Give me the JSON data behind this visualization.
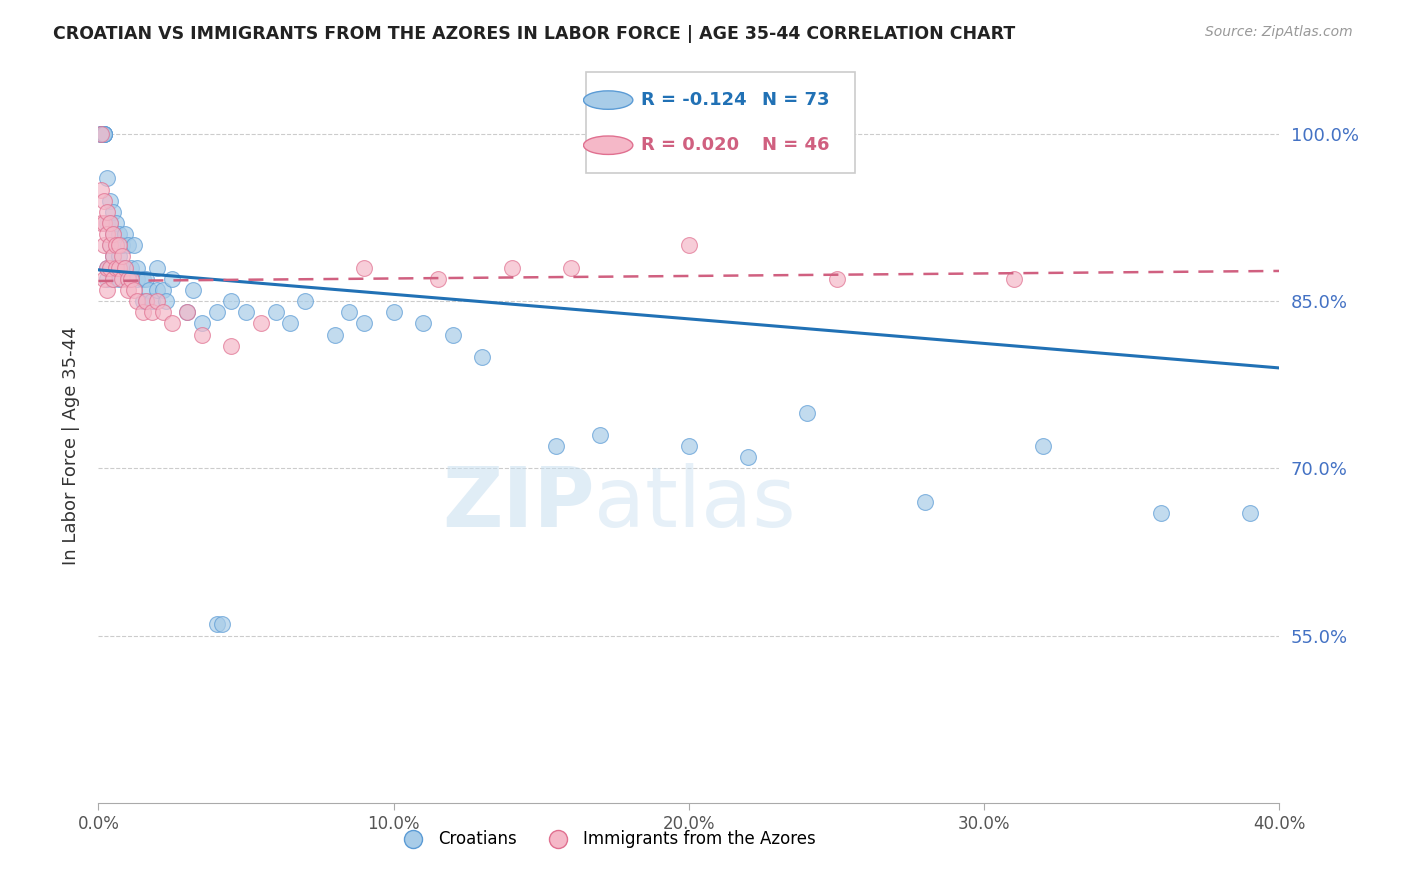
{
  "title": "CROATIAN VS IMMIGRANTS FROM THE AZORES IN LABOR FORCE | AGE 35-44 CORRELATION CHART",
  "source": "Source: ZipAtlas.com",
  "ylabel": "In Labor Force | Age 35-44",
  "xlim": [
    0.0,
    0.4
  ],
  "ylim": [
    0.4,
    1.04
  ],
  "yticks": [
    0.55,
    0.7,
    0.85,
    1.0
  ],
  "ytick_labels": [
    "55.0%",
    "70.0%",
    "85.0%",
    "100.0%"
  ],
  "xticks": [
    0.0,
    0.1,
    0.2,
    0.3,
    0.4
  ],
  "xtick_labels": [
    "0.0%",
    "10.0%",
    "20.0%",
    "30.0%",
    "40.0%"
  ],
  "blue_color": "#a8cce8",
  "pink_color": "#f5b8c8",
  "blue_edge_color": "#5b9bd5",
  "pink_edge_color": "#e07090",
  "blue_line_color": "#2171b5",
  "pink_line_color": "#d06080",
  "axis_color": "#4472c4",
  "legend_R_blue": "R = -0.124",
  "legend_N_blue": "N = 73",
  "legend_R_pink": "R = 0.020",
  "legend_N_pink": "N = 46",
  "legend_label_blue": "Croatians",
  "legend_label_pink": "Immigrants from the Azores",
  "watermark_zip": "ZIP",
  "watermark_atlas": "atlas",
  "blue_trend": [
    0.0,
    0.4,
    0.878,
    0.79
  ],
  "pink_trend": [
    0.0,
    0.4,
    0.868,
    0.877
  ],
  "blue_x": [
    0.001,
    0.001,
    0.001,
    0.002,
    0.002,
    0.002,
    0.002,
    0.002,
    0.003,
    0.003,
    0.003,
    0.003,
    0.004,
    0.004,
    0.004,
    0.004,
    0.005,
    0.005,
    0.005,
    0.005,
    0.006,
    0.006,
    0.007,
    0.007,
    0.007,
    0.008,
    0.008,
    0.009,
    0.009,
    0.01,
    0.01,
    0.011,
    0.012,
    0.013,
    0.013,
    0.015,
    0.015,
    0.016,
    0.016,
    0.017,
    0.018,
    0.02,
    0.02,
    0.022,
    0.023,
    0.025,
    0.03,
    0.032,
    0.035,
    0.04,
    0.045,
    0.05,
    0.06,
    0.065,
    0.07,
    0.08,
    0.085,
    0.09,
    0.1,
    0.11,
    0.12,
    0.13,
    0.155,
    0.17,
    0.2,
    0.22,
    0.24,
    0.28,
    0.32,
    0.36,
    0.39,
    0.04,
    0.042
  ],
  "blue_y": [
    1.0,
    1.0,
    1.0,
    1.0,
    1.0,
    1.0,
    1.0,
    1.0,
    0.96,
    0.92,
    0.88,
    0.87,
    0.94,
    0.92,
    0.9,
    0.88,
    0.93,
    0.91,
    0.89,
    0.87,
    0.92,
    0.9,
    0.91,
    0.89,
    0.87,
    0.9,
    0.88,
    0.91,
    0.88,
    0.9,
    0.87,
    0.88,
    0.9,
    0.88,
    0.87,
    0.87,
    0.85,
    0.87,
    0.85,
    0.86,
    0.85,
    0.88,
    0.86,
    0.86,
    0.85,
    0.87,
    0.84,
    0.86,
    0.83,
    0.84,
    0.85,
    0.84,
    0.84,
    0.83,
    0.85,
    0.82,
    0.84,
    0.83,
    0.84,
    0.83,
    0.82,
    0.8,
    0.72,
    0.73,
    0.72,
    0.71,
    0.75,
    0.67,
    0.72,
    0.66,
    0.66,
    0.56,
    0.56
  ],
  "pink_x": [
    0.001,
    0.001,
    0.001,
    0.002,
    0.002,
    0.002,
    0.002,
    0.003,
    0.003,
    0.003,
    0.003,
    0.004,
    0.004,
    0.004,
    0.005,
    0.005,
    0.005,
    0.006,
    0.006,
    0.007,
    0.007,
    0.008,
    0.008,
    0.009,
    0.01,
    0.01,
    0.011,
    0.012,
    0.013,
    0.015,
    0.016,
    0.018,
    0.02,
    0.022,
    0.025,
    0.03,
    0.035,
    0.045,
    0.055,
    0.09,
    0.115,
    0.14,
    0.16,
    0.2,
    0.25,
    0.31
  ],
  "pink_y": [
    1.0,
    0.95,
    0.92,
    0.94,
    0.92,
    0.9,
    0.87,
    0.93,
    0.91,
    0.88,
    0.86,
    0.92,
    0.9,
    0.88,
    0.91,
    0.89,
    0.87,
    0.9,
    0.88,
    0.9,
    0.88,
    0.89,
    0.87,
    0.88,
    0.87,
    0.86,
    0.87,
    0.86,
    0.85,
    0.84,
    0.85,
    0.84,
    0.85,
    0.84,
    0.83,
    0.84,
    0.82,
    0.81,
    0.83,
    0.88,
    0.87,
    0.88,
    0.88,
    0.9,
    0.87,
    0.87
  ]
}
